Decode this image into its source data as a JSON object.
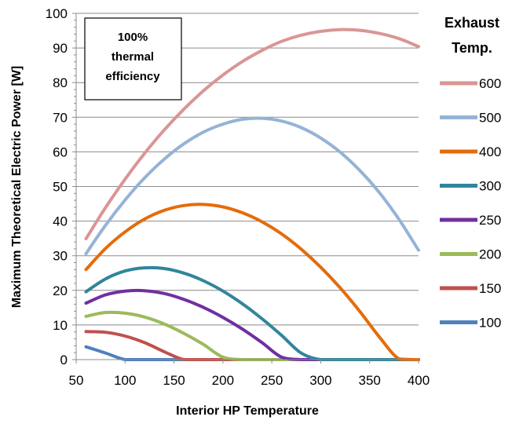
{
  "chart_data": {
    "type": "line",
    "title": "",
    "xlabel": "Interior HP Temperature",
    "ylabel": "Maximum Theoretical Electric Power [W]",
    "xlim": [
      50,
      400
    ],
    "ylim": [
      0,
      100
    ],
    "xticks": [
      50,
      100,
      150,
      200,
      250,
      300,
      350,
      400
    ],
    "yticks": [
      0,
      10,
      20,
      30,
      40,
      50,
      60,
      70,
      80,
      90,
      100
    ],
    "grid": "horizontal",
    "annotation": "100% thermal efficiency",
    "legend": {
      "title": "Exhaust Temp.",
      "placement": "right"
    },
    "series": [
      {
        "name": "600",
        "color": "#d99694",
        "x": [
          60,
          80,
          100,
          120,
          140,
          160,
          180,
          200,
          220,
          240,
          260,
          280,
          300,
          320,
          340,
          360,
          380,
          400
        ],
        "y": [
          34.9,
          43.9,
          52.1,
          59.6,
          66.3,
          72.3,
          77.6,
          82.2,
          86.1,
          89.3,
          91.9,
          93.7,
          94.8,
          95.3,
          95.1,
          94.2,
          92.7,
          90.4
        ]
      },
      {
        "name": "500",
        "color": "#95b3d7",
        "x": [
          60,
          80,
          100,
          120,
          140,
          160,
          180,
          200,
          220,
          240,
          260,
          280,
          300,
          320,
          340,
          360,
          380,
          400
        ],
        "y": [
          30.6,
          38.8,
          46.1,
          52.5,
          57.9,
          62.3,
          65.7,
          68.0,
          69.4,
          69.7,
          68.9,
          67.0,
          64.0,
          59.9,
          54.6,
          48.2,
          40.5,
          31.6
        ]
      },
      {
        "name": "400",
        "color": "#e46c0a",
        "x": [
          60,
          80,
          100,
          120,
          140,
          160,
          180,
          200,
          220,
          240,
          260,
          280,
          300,
          320,
          340,
          360,
          380,
          400
        ],
        "y": [
          26.0,
          32.1,
          36.9,
          40.6,
          43.1,
          44.5,
          44.8,
          44.1,
          42.4,
          39.8,
          36.3,
          31.9,
          26.7,
          20.7,
          13.9,
          6.5,
          0.2,
          0
        ]
      },
      {
        "name": "300",
        "color": "#31859c",
        "x": [
          60,
          80,
          100,
          120,
          140,
          160,
          180,
          200,
          220,
          240,
          260,
          280,
          300,
          320,
          340,
          360,
          380,
          400
        ],
        "y": [
          19.6,
          23.3,
          25.6,
          26.5,
          26.3,
          25.0,
          22.8,
          19.8,
          16.1,
          11.8,
          7.0,
          1.9,
          0,
          0,
          0,
          0,
          0,
          0
        ]
      },
      {
        "name": "250",
        "color": "#7030a0",
        "x": [
          60,
          80,
          100,
          120,
          140,
          160,
          180,
          200,
          220,
          240,
          260,
          280,
          300,
          320,
          340,
          360,
          380,
          400
        ],
        "y": [
          16.3,
          18.7,
          19.8,
          19.9,
          19.1,
          17.4,
          15.1,
          12.2,
          8.8,
          4.9,
          0.7,
          0,
          0,
          0,
          0,
          0,
          0,
          0
        ]
      },
      {
        "name": "200",
        "color": "#9bbb59",
        "x": [
          60,
          80,
          100,
          120,
          140,
          160,
          180,
          200,
          220,
          240,
          260,
          280,
          300,
          320,
          340,
          360,
          380,
          400
        ],
        "y": [
          12.5,
          13.6,
          13.4,
          12.3,
          10.3,
          7.6,
          4.4,
          0.7,
          0,
          0,
          0,
          0,
          0,
          0,
          0,
          0,
          0,
          0
        ]
      },
      {
        "name": "150",
        "color": "#c0504d",
        "x": [
          60,
          80,
          100,
          120,
          140,
          160,
          180,
          200,
          220,
          240,
          260,
          280,
          300,
          320,
          340,
          360,
          380,
          400
        ],
        "y": [
          8.1,
          7.9,
          6.8,
          4.9,
          2.3,
          0,
          0,
          0,
          0,
          0,
          0,
          0,
          0,
          0,
          0,
          0,
          0,
          0
        ]
      },
      {
        "name": "100",
        "color": "#4f81bd",
        "x": [
          60,
          80,
          100,
          120,
          140,
          160,
          180,
          200,
          220,
          240,
          260,
          280,
          300,
          320,
          340,
          360,
          380,
          400
        ],
        "y": [
          3.7,
          1.9,
          0,
          0,
          0,
          0,
          0,
          0,
          0,
          0,
          0,
          0,
          0,
          0,
          0,
          0,
          0,
          0
        ]
      }
    ]
  }
}
